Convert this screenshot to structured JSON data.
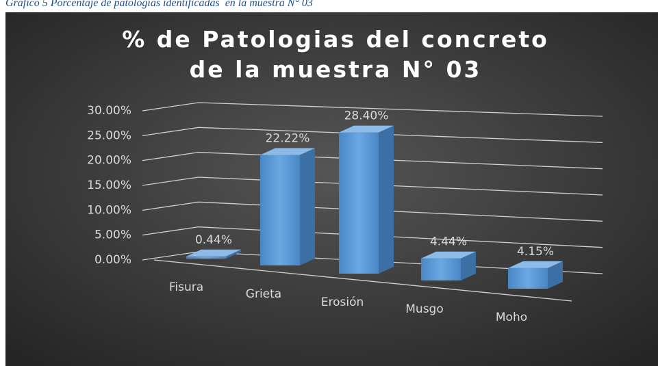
{
  "caption": "Gráfico 5 Porcentaje de patologías identificadas  en la muestra N° 03",
  "chart_data": {
    "type": "bar3d",
    "title": "% de Patologias del concreto de la muestra N° 03",
    "categories": [
      "Fisura",
      "Grieta",
      "Erosión",
      "Musgo",
      "Moho"
    ],
    "values": [
      0.44,
      22.22,
      28.4,
      4.44,
      4.15
    ],
    "value_labels": [
      "0.44%",
      "22.22%",
      "28.40%",
      "4.44%",
      "4.15%"
    ],
    "color": "#5b9bd5",
    "ylim": [
      0,
      30
    ],
    "yticks": [
      {
        "value": 0,
        "label": "0.00%"
      },
      {
        "value": 5,
        "label": "5.00%"
      },
      {
        "value": 10,
        "label": "10.00%"
      },
      {
        "value": 15,
        "label": "15.00%"
      },
      {
        "value": 20,
        "label": "20.00%"
      },
      {
        "value": 25,
        "label": "25.00%"
      },
      {
        "value": 30,
        "label": "30.00%"
      }
    ],
    "grid": true
  }
}
